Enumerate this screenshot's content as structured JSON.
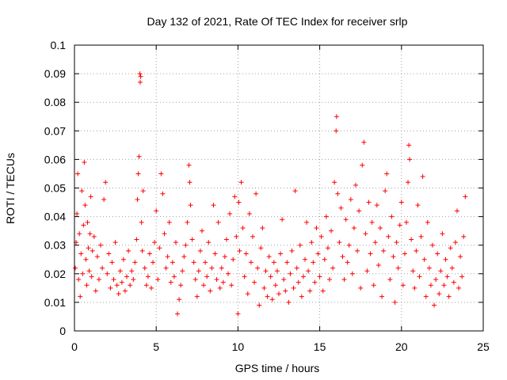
{
  "chart_data": {
    "type": "scatter",
    "title": "Day 132 of 2021, Rate Of TEC Index for receiver srlp",
    "xlabel": "GPS time / hours",
    "ylabel": "ROTI / TECUs",
    "xlim": [
      0,
      25
    ],
    "ylim": [
      0,
      0.1
    ],
    "xticks": [
      0,
      5,
      10,
      15,
      20,
      25
    ],
    "xtick_labels": [
      "0",
      "5",
      "10",
      "15",
      "20",
      "25"
    ],
    "yticks": [
      0,
      0.01,
      0.02,
      0.03,
      0.04,
      0.05,
      0.06,
      0.07,
      0.08,
      0.09,
      0.1
    ],
    "ytick_labels": [
      "0",
      "0.01",
      "0.02",
      "0.03",
      "0.04",
      "0.05",
      "0.06",
      "0.07",
      "0.08",
      "0.09",
      "0.1"
    ],
    "grid": true,
    "marker": "+",
    "color": "#ff0000",
    "series": [
      {
        "name": "ROTI",
        "points": [
          [
            0.05,
            0.022
          ],
          [
            0.1,
            0.031
          ],
          [
            0.15,
            0.041
          ],
          [
            0.2,
            0.055
          ],
          [
            0.25,
            0.018
          ],
          [
            0.3,
            0.034
          ],
          [
            0.35,
            0.012
          ],
          [
            0.4,
            0.027
          ],
          [
            0.45,
            0.049
          ],
          [
            0.5,
            0.02
          ],
          [
            0.55,
            0.037
          ],
          [
            0.6,
            0.059
          ],
          [
            0.65,
            0.044
          ],
          [
            0.7,
            0.025
          ],
          [
            0.75,
            0.016
          ],
          [
            0.8,
            0.038
          ],
          [
            0.85,
            0.029
          ],
          [
            0.9,
            0.021
          ],
          [
            0.95,
            0.034
          ],
          [
            1.0,
            0.047
          ],
          [
            1.05,
            0.019
          ],
          [
            1.1,
            0.028
          ],
          [
            1.2,
            0.033
          ],
          [
            1.3,
            0.014
          ],
          [
            1.4,
            0.026
          ],
          [
            1.5,
            0.018
          ],
          [
            1.6,
            0.03
          ],
          [
            1.7,
            0.022
          ],
          [
            1.8,
            0.046
          ],
          [
            1.9,
            0.052
          ],
          [
            2.0,
            0.02
          ],
          [
            2.1,
            0.027
          ],
          [
            2.2,
            0.015
          ],
          [
            2.3,
            0.024
          ],
          [
            2.4,
            0.018
          ],
          [
            2.5,
            0.031
          ],
          [
            2.6,
            0.016
          ],
          [
            2.7,
            0.013
          ],
          [
            2.8,
            0.021
          ],
          [
            2.9,
            0.017
          ],
          [
            3.0,
            0.025
          ],
          [
            3.1,
            0.014
          ],
          [
            3.2,
            0.019
          ],
          [
            3.3,
            0.028
          ],
          [
            3.4,
            0.016
          ],
          [
            3.5,
            0.021
          ],
          [
            3.6,
            0.018
          ],
          [
            3.7,
            0.024
          ],
          [
            3.8,
            0.032
          ],
          [
            3.85,
            0.046
          ],
          [
            3.9,
            0.055
          ],
          [
            3.95,
            0.061
          ],
          [
            4.0,
            0.09
          ],
          [
            4.02,
            0.087
          ],
          [
            4.05,
            0.089
          ],
          [
            4.1,
            0.038
          ],
          [
            4.15,
            0.028
          ],
          [
            4.2,
            0.049
          ],
          [
            4.3,
            0.022
          ],
          [
            4.4,
            0.016
          ],
          [
            4.5,
            0.019
          ],
          [
            4.6,
            0.027
          ],
          [
            4.7,
            0.015
          ],
          [
            4.8,
            0.024
          ],
          [
            4.9,
            0.031
          ],
          [
            5.0,
            0.042
          ],
          [
            5.1,
            0.018
          ],
          [
            5.2,
            0.029
          ],
          [
            5.3,
            0.055
          ],
          [
            5.4,
            0.048
          ],
          [
            5.5,
            0.034
          ],
          [
            5.6,
            0.022
          ],
          [
            5.7,
            0.026
          ],
          [
            5.8,
            0.038
          ],
          [
            5.9,
            0.017
          ],
          [
            6.0,
            0.024
          ],
          [
            6.1,
            0.019
          ],
          [
            6.2,
            0.031
          ],
          [
            6.3,
            0.006
          ],
          [
            6.4,
            0.011
          ],
          [
            6.5,
            0.016
          ],
          [
            6.6,
            0.021
          ],
          [
            6.7,
            0.026
          ],
          [
            6.8,
            0.03
          ],
          [
            6.9,
            0.038
          ],
          [
            7.0,
            0.058
          ],
          [
            7.05,
            0.052
          ],
          [
            7.1,
            0.044
          ],
          [
            7.2,
            0.032
          ],
          [
            7.3,
            0.024
          ],
          [
            7.4,
            0.018
          ],
          [
            7.5,
            0.012
          ],
          [
            7.6,
            0.021
          ],
          [
            7.7,
            0.028
          ],
          [
            7.8,
            0.035
          ],
          [
            7.9,
            0.016
          ],
          [
            8.0,
            0.024
          ],
          [
            8.1,
            0.019
          ],
          [
            8.2,
            0.031
          ],
          [
            8.3,
            0.014
          ],
          [
            8.4,
            0.022
          ],
          [
            8.5,
            0.044
          ],
          [
            8.6,
            0.027
          ],
          [
            8.7,
            0.018
          ],
          [
            8.8,
            0.038
          ],
          [
            8.9,
            0.015
          ],
          [
            9.0,
            0.022
          ],
          [
            9.1,
            0.017
          ],
          [
            9.2,
            0.026
          ],
          [
            9.3,
            0.032
          ],
          [
            9.4,
            0.02
          ],
          [
            9.5,
            0.041
          ],
          [
            9.6,
            0.016
          ],
          [
            9.7,
            0.025
          ],
          [
            9.8,
            0.047
          ],
          [
            9.9,
            0.033
          ],
          [
            10.0,
            0.006
          ],
          [
            10.05,
            0.045
          ],
          [
            10.1,
            0.028
          ],
          [
            10.2,
            0.052
          ],
          [
            10.3,
            0.036
          ],
          [
            10.4,
            0.019
          ],
          [
            10.5,
            0.027
          ],
          [
            10.6,
            0.013
          ],
          [
            10.7,
            0.041
          ],
          [
            10.8,
            0.024
          ],
          [
            10.9,
            0.033
          ],
          [
            11.0,
            0.017
          ],
          [
            11.1,
            0.048
          ],
          [
            11.2,
            0.022
          ],
          [
            11.3,
            0.009
          ],
          [
            11.4,
            0.029
          ],
          [
            11.5,
            0.036
          ],
          [
            11.6,
            0.015
          ],
          [
            11.7,
            0.021
          ],
          [
            11.8,
            0.012
          ],
          [
            11.9,
            0.026
          ],
          [
            12.0,
            0.019
          ],
          [
            12.1,
            0.011
          ],
          [
            12.2,
            0.024
          ],
          [
            12.3,
            0.016
          ],
          [
            12.4,
            0.021
          ],
          [
            12.5,
            0.013
          ],
          [
            12.6,
            0.027
          ],
          [
            12.7,
            0.039
          ],
          [
            12.8,
            0.018
          ],
          [
            12.9,
            0.014
          ],
          [
            13.0,
            0.024
          ],
          [
            13.1,
            0.01
          ],
          [
            13.2,
            0.02
          ],
          [
            13.3,
            0.028
          ],
          [
            13.4,
            0.015
          ],
          [
            13.5,
            0.049
          ],
          [
            13.6,
            0.022
          ],
          [
            13.7,
            0.017
          ],
          [
            13.8,
            0.03
          ],
          [
            13.9,
            0.012
          ],
          [
            14.0,
            0.019
          ],
          [
            14.1,
            0.025
          ],
          [
            14.2,
            0.038
          ],
          [
            14.3,
            0.021
          ],
          [
            14.4,
            0.014
          ],
          [
            14.5,
            0.031
          ],
          [
            14.6,
            0.024
          ],
          [
            14.7,
            0.017
          ],
          [
            14.8,
            0.036
          ],
          [
            14.9,
            0.027
          ],
          [
            15.0,
            0.019
          ],
          [
            15.1,
            0.033
          ],
          [
            15.2,
            0.014
          ],
          [
            15.3,
            0.025
          ],
          [
            15.4,
            0.04
          ],
          [
            15.5,
            0.029
          ],
          [
            15.6,
            0.018
          ],
          [
            15.7,
            0.035
          ],
          [
            15.8,
            0.022
          ],
          [
            15.9,
            0.052
          ],
          [
            16.0,
            0.07
          ],
          [
            16.03,
            0.075
          ],
          [
            16.1,
            0.048
          ],
          [
            16.2,
            0.031
          ],
          [
            16.3,
            0.043
          ],
          [
            16.4,
            0.026
          ],
          [
            16.5,
            0.018
          ],
          [
            16.6,
            0.039
          ],
          [
            16.7,
            0.024
          ],
          [
            16.8,
            0.03
          ],
          [
            16.9,
            0.046
          ],
          [
            17.0,
            0.02
          ],
          [
            17.1,
            0.036
          ],
          [
            17.2,
            0.051
          ],
          [
            17.3,
            0.028
          ],
          [
            17.4,
            0.042
          ],
          [
            17.5,
            0.015
          ],
          [
            17.6,
            0.058
          ],
          [
            17.7,
            0.066
          ],
          [
            17.8,
            0.034
          ],
          [
            17.9,
            0.021
          ],
          [
            18.0,
            0.045
          ],
          [
            18.1,
            0.027
          ],
          [
            18.2,
            0.038
          ],
          [
            18.3,
            0.016
          ],
          [
            18.4,
            0.031
          ],
          [
            18.5,
            0.044
          ],
          [
            18.6,
            0.023
          ],
          [
            18.7,
            0.036
          ],
          [
            18.8,
            0.012
          ],
          [
            18.9,
            0.028
          ],
          [
            19.0,
            0.049
          ],
          [
            19.1,
            0.055
          ],
          [
            19.2,
            0.033
          ],
          [
            19.3,
            0.018
          ],
          [
            19.4,
            0.04
          ],
          [
            19.5,
            0.026
          ],
          [
            19.6,
            0.01
          ],
          [
            19.7,
            0.031
          ],
          [
            19.8,
            0.022
          ],
          [
            19.9,
            0.037
          ],
          [
            20.0,
            0.045
          ],
          [
            20.1,
            0.016
          ],
          [
            20.2,
            0.027
          ],
          [
            20.3,
            0.038
          ],
          [
            20.4,
            0.052
          ],
          [
            20.45,
            0.065
          ],
          [
            20.5,
            0.06
          ],
          [
            20.6,
            0.032
          ],
          [
            20.7,
            0.021
          ],
          [
            20.8,
            0.015
          ],
          [
            20.9,
            0.028
          ],
          [
            21.0,
            0.044
          ],
          [
            21.1,
            0.019
          ],
          [
            21.2,
            0.033
          ],
          [
            21.3,
            0.054
          ],
          [
            21.4,
            0.025
          ],
          [
            21.5,
            0.012
          ],
          [
            21.6,
            0.038
          ],
          [
            21.7,
            0.022
          ],
          [
            21.8,
            0.016
          ],
          [
            21.9,
            0.03
          ],
          [
            22.0,
            0.009
          ],
          [
            22.1,
            0.018
          ],
          [
            22.2,
            0.027
          ],
          [
            22.3,
            0.013
          ],
          [
            22.4,
            0.021
          ],
          [
            22.5,
            0.034
          ],
          [
            22.6,
            0.016
          ],
          [
            22.7,
            0.025
          ],
          [
            22.8,
            0.019
          ],
          [
            22.9,
            0.012
          ],
          [
            23.0,
            0.029
          ],
          [
            23.1,
            0.022
          ],
          [
            23.2,
            0.017
          ],
          [
            23.3,
            0.031
          ],
          [
            23.4,
            0.042
          ],
          [
            23.5,
            0.015
          ],
          [
            23.6,
            0.026
          ],
          [
            23.7,
            0.019
          ],
          [
            23.8,
            0.033
          ],
          [
            23.9,
            0.047
          ]
        ]
      }
    ]
  }
}
